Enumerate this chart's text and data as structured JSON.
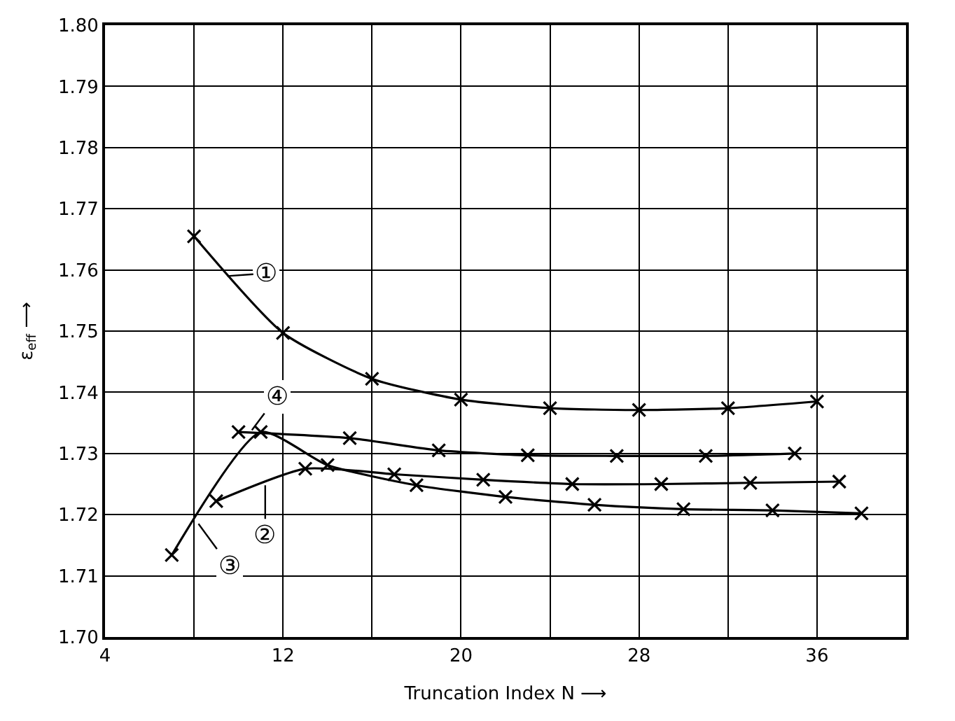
{
  "chart_data": {
    "type": "line",
    "xlabel": "Truncation Index N ⟶",
    "ylabel": "ε$_{eff}$ ⟶",
    "marker": "cross",
    "line_style": "solid",
    "grid": true,
    "xlim": [
      4,
      40
    ],
    "ylim": [
      1.7,
      1.8
    ],
    "xticks": [
      4,
      {
        "value": 8,
        "label": null
      },
      12,
      {
        "value": 16,
        "label": null
      },
      20,
      {
        "value": 24,
        "label": null
      },
      28,
      {
        "value": 32,
        "label": null
      },
      36,
      {
        "value": 40,
        "label": null
      }
    ],
    "yticks": [
      {
        "value": 1.7,
        "label": "1.70"
      },
      1.71,
      1.72,
      1.73,
      1.74,
      1.75,
      1.76,
      1.77,
      1.78,
      1.79,
      {
        "value": 1.8,
        "label": "1.80"
      }
    ],
    "series": [
      {
        "color": "#000000",
        "x": [
          8,
          12,
          16,
          20,
          24,
          28,
          32,
          36
        ],
        "values": [
          1.7655,
          1.7497,
          1.7422,
          1.7388,
          1.7374,
          1.7371,
          1.7374,
          1.7385
        ]
      },
      {
        "color": "#000000",
        "x": [
          9,
          13,
          17,
          21,
          25,
          29,
          33,
          37
        ],
        "values": [
          1.7222,
          1.7275,
          1.7266,
          1.7257,
          1.725,
          1.725,
          1.7252,
          1.7254
        ]
      },
      {
        "color": "#000000",
        "x": [
          7,
          11,
          14,
          18,
          22,
          26,
          30,
          34,
          38
        ],
        "values": [
          1.7134,
          1.7335,
          1.7281,
          1.7248,
          1.7229,
          1.7216,
          1.7209,
          1.7207,
          1.7202
        ]
      },
      {
        "color": "#000000",
        "x": [
          10,
          15,
          19,
          23,
          27,
          31,
          35
        ],
        "values": [
          1.7335,
          1.7325,
          1.7305,
          1.7297,
          1.7296,
          1.7296,
          1.73
        ]
      }
    ],
    "annotations": [
      {
        "text": "①",
        "x": 9.5,
        "y": 1.759
      },
      {
        "text": "②",
        "x": 11.2,
        "y": 1.7248
      },
      {
        "text": "③",
        "x": 8.2,
        "y": 1.7185
      },
      {
        "text": "④",
        "x": 10.6,
        "y": 1.7338
      }
    ]
  }
}
